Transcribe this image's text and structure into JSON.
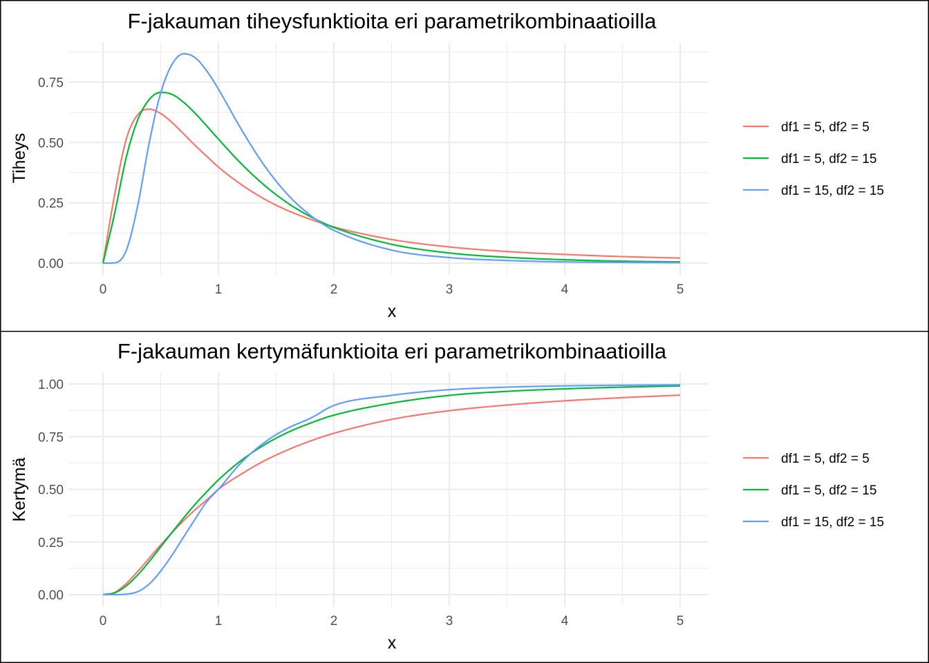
{
  "chart_data": [
    {
      "type": "line",
      "title": "F-jakauman tiheysfunktioita eri parametrikombinaatioilla",
      "xlabel": "x",
      "ylabel": "Tiheys",
      "xlim": [
        0,
        5
      ],
      "ylim": [
        0,
        0.88
      ],
      "x_ticks": [
        "0",
        "1",
        "2",
        "3",
        "4",
        "5"
      ],
      "y_ticks": [
        "0.00",
        "0.25",
        "0.50",
        "0.75"
      ],
      "grid": true,
      "legend_position": "right",
      "x": [
        0,
        0.1,
        0.2,
        0.3,
        0.4,
        0.5,
        0.6,
        0.7,
        0.8,
        0.9,
        1.0,
        1.2,
        1.4,
        1.6,
        1.8,
        2.0,
        2.5,
        3.0,
        3.5,
        4.0,
        4.5,
        5.0
      ],
      "series": [
        {
          "name": "df1 = 5, df2 = 5",
          "color": "#F8766D",
          "values": [
            0,
            0.282,
            0.512,
            0.615,
            0.638,
            0.62,
            0.582,
            0.535,
            0.487,
            0.442,
            0.398,
            0.325,
            0.265,
            0.218,
            0.181,
            0.15,
            0.098,
            0.067,
            0.048,
            0.036,
            0.027,
            0.021
          ]
        },
        {
          "name": "df1 = 5, df2 = 15",
          "color": "#00BA38",
          "values": [
            0,
            0.204,
            0.436,
            0.593,
            0.678,
            0.708,
            0.699,
            0.666,
            0.62,
            0.568,
            0.514,
            0.411,
            0.322,
            0.249,
            0.192,
            0.148,
            0.078,
            0.042,
            0.024,
            0.014,
            0.008,
            0.005
          ]
        },
        {
          "name": "df1 = 15, df2 = 15",
          "color": "#619CFF",
          "values": [
            0,
            0.001,
            0.05,
            0.236,
            0.498,
            0.706,
            0.826,
            0.868,
            0.851,
            0.796,
            0.721,
            0.553,
            0.403,
            0.284,
            0.197,
            0.136,
            0.054,
            0.023,
            0.011,
            0.005,
            0.003,
            0.002
          ]
        }
      ]
    },
    {
      "type": "line",
      "title": "F-jakauman kertymäfunktioita eri parametrikombinaatioilla",
      "xlabel": "x",
      "ylabel": "Kertymä",
      "xlim": [
        0,
        5
      ],
      "ylim": [
        0,
        1
      ],
      "x_ticks": [
        "0",
        "1",
        "2",
        "3",
        "4",
        "5"
      ],
      "y_ticks": [
        "0.00",
        "0.25",
        "0.50",
        "0.75",
        "1.00"
      ],
      "grid": true,
      "legend_position": "right",
      "x": [
        0,
        0.1,
        0.2,
        0.3,
        0.4,
        0.5,
        0.6,
        0.7,
        0.8,
        0.9,
        1.0,
        1.2,
        1.4,
        1.6,
        1.8,
        2.0,
        2.5,
        3.0,
        3.5,
        4.0,
        4.5,
        5.0
      ],
      "series": [
        {
          "name": "df1 = 5, df2 = 5",
          "color": "#F8766D",
          "values": [
            0,
            0.01,
            0.052,
            0.11,
            0.173,
            0.236,
            0.296,
            0.352,
            0.404,
            0.45,
            0.5,
            0.573,
            0.636,
            0.687,
            0.73,
            0.766,
            0.832,
            0.873,
            0.9,
            0.92,
            0.935,
            0.947
          ]
        },
        {
          "name": "df1 = 5, df2 = 15",
          "color": "#00BA38",
          "values": [
            0,
            0.008,
            0.041,
            0.093,
            0.157,
            0.227,
            0.297,
            0.365,
            0.43,
            0.489,
            0.545,
            0.638,
            0.712,
            0.77,
            0.815,
            0.852,
            0.909,
            0.946,
            0.965,
            0.977,
            0.985,
            0.991
          ]
        },
        {
          "name": "df1 = 15, df2 = 15",
          "color": "#619CFF",
          "values": [
            0,
            0.0,
            0.002,
            0.014,
            0.05,
            0.112,
            0.189,
            0.275,
            0.36,
            0.442,
            0.5,
            0.628,
            0.723,
            0.79,
            0.838,
            0.898,
            0.946,
            0.973,
            0.985,
            0.991,
            0.994,
            0.996
          ]
        }
      ]
    }
  ]
}
